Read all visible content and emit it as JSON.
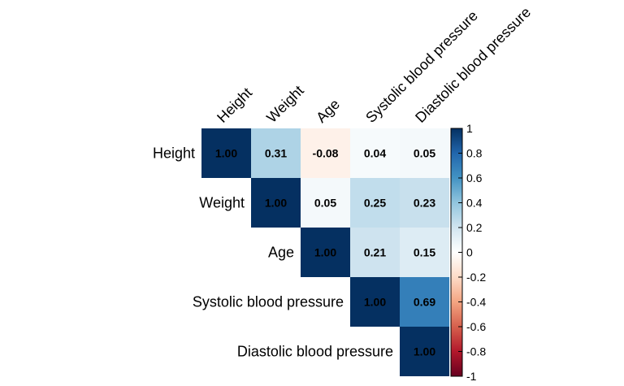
{
  "chart_data": {
    "type": "heatmap",
    "subtype": "correlation-upper-triangle",
    "variables": [
      "Height",
      "Weight",
      "Age",
      "Systolic blood pressure",
      "Diastolic blood pressure"
    ],
    "matrix": [
      [
        1.0,
        0.31,
        -0.08,
        0.04,
        0.05
      ],
      [
        null,
        1.0,
        0.05,
        0.25,
        0.23
      ],
      [
        null,
        null,
        1.0,
        0.21,
        0.15
      ],
      [
        null,
        null,
        null,
        1.0,
        0.69
      ],
      [
        null,
        null,
        null,
        null,
        1.0
      ]
    ],
    "cell_labels": [
      [
        "1.00",
        "0.31",
        "-0.08",
        "0.04",
        "0.05"
      ],
      [
        "",
        "1.00",
        "0.05",
        "0.25",
        "0.23"
      ],
      [
        "",
        "",
        "1.00",
        "0.21",
        "0.15"
      ],
      [
        "",
        "",
        "",
        "1.00",
        "0.69"
      ],
      [
        "",
        "",
        "",
        "",
        "1.00"
      ]
    ],
    "colorbar": {
      "range": [
        -1,
        1
      ],
      "tick_labels": [
        "1",
        "0.8",
        "0.6",
        "0.4",
        "0.2",
        "0",
        "-0.2",
        "-0.4",
        "-0.6",
        "-0.8",
        "-1"
      ],
      "colors": [
        "#67001F",
        "#B2182B",
        "#D6604D",
        "#F4A582",
        "#FDDBC7",
        "#FFFFFF",
        "#D1E5F0",
        "#92C5DE",
        "#4393C3",
        "#2166AC",
        "#053061"
      ]
    }
  }
}
